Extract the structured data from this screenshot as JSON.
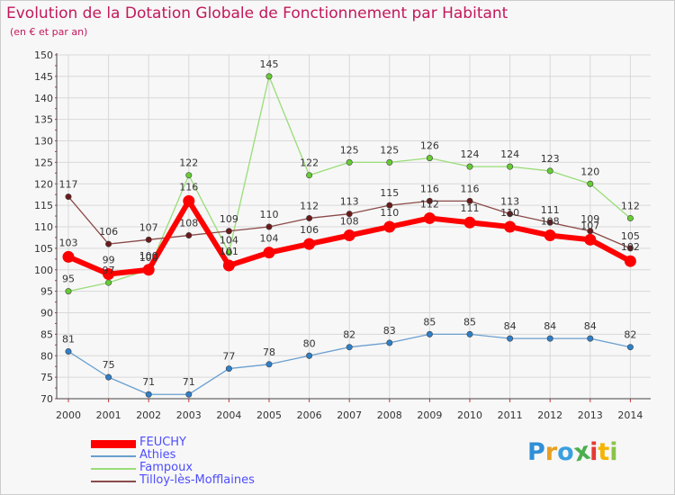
{
  "title": "Evolution de la Dotation Globale de Fonctionnement par Habitant",
  "subtitle": "(en € et par an)",
  "logo": {
    "text": "Proxiti",
    "colors": [
      "#2f8fd8",
      "#e8a020",
      "#3aa0e0",
      "#4caf50",
      "#e53935",
      "#f4b400",
      "#8bc34a"
    ]
  },
  "chart_data": {
    "type": "line",
    "title": "Evolution de la Dotation Globale de Fonctionnement par Habitant",
    "subtitle": "(en € et par an)",
    "x": [
      "2000",
      "2001",
      "2002",
      "2003",
      "2004",
      "2005",
      "2006",
      "2007",
      "2008",
      "2009",
      "2010",
      "2011",
      "2012",
      "2013",
      "2014"
    ],
    "yticks": [
      "150",
      "145",
      "140",
      "135",
      "130",
      "125",
      "120",
      "115",
      "110",
      "105",
      "100",
      "95",
      "90",
      "85",
      "80",
      "75",
      "70"
    ],
    "ylim": [
      70,
      150
    ],
    "grid": true,
    "legend_position": "bottom-left",
    "series": [
      {
        "name": "FEUCHY",
        "color": "#ff0000",
        "point_color": "#ff0000",
        "values": [
          103,
          99,
          100,
          116,
          101,
          104,
          106,
          108,
          110,
          112,
          111,
          110,
          108,
          107,
          102
        ],
        "labels": [
          "103",
          "99",
          "100",
          "116",
          "101",
          "104",
          "106",
          "108",
          "110",
          "112",
          "111",
          "110",
          "108",
          "107",
          "102"
        ]
      },
      {
        "name": "Athies",
        "color": "#6a9fcf",
        "point_color": "#2f7fc8",
        "values": [
          81,
          75,
          71,
          71,
          77,
          78,
          80,
          82,
          83,
          85,
          85,
          84,
          84,
          84,
          82
        ],
        "labels": [
          "81",
          "75",
          "71",
          "71",
          "77",
          "78",
          "80",
          "82",
          "83",
          "85",
          "85",
          "84",
          "84",
          "84",
          "82"
        ]
      },
      {
        "name": "Fampoux",
        "color": "#99dd77",
        "point_color": "#66cc33",
        "values": [
          95,
          97,
          100,
          122,
          104,
          145,
          122,
          125,
          125,
          126,
          124,
          124,
          123,
          120,
          112
        ],
        "labels": [
          "95",
          "97",
          "100",
          "122",
          "104",
          "145",
          "122",
          "125",
          "125",
          "126",
          "124",
          "124",
          "123",
          "120",
          "112"
        ]
      },
      {
        "name": "Tilloy-lès-Mofflaines",
        "color": "#8b4a4a",
        "point_color": "#6b1a1a",
        "values": [
          117,
          106,
          107,
          108,
          109,
          110,
          112,
          113,
          115,
          116,
          116,
          113,
          111,
          109,
          105
        ],
        "labels": [
          "117",
          "106",
          "107",
          "108",
          "109",
          "110",
          "112",
          "113",
          "115",
          "116",
          "116",
          "113",
          "111",
          "109",
          "105"
        ]
      }
    ]
  }
}
